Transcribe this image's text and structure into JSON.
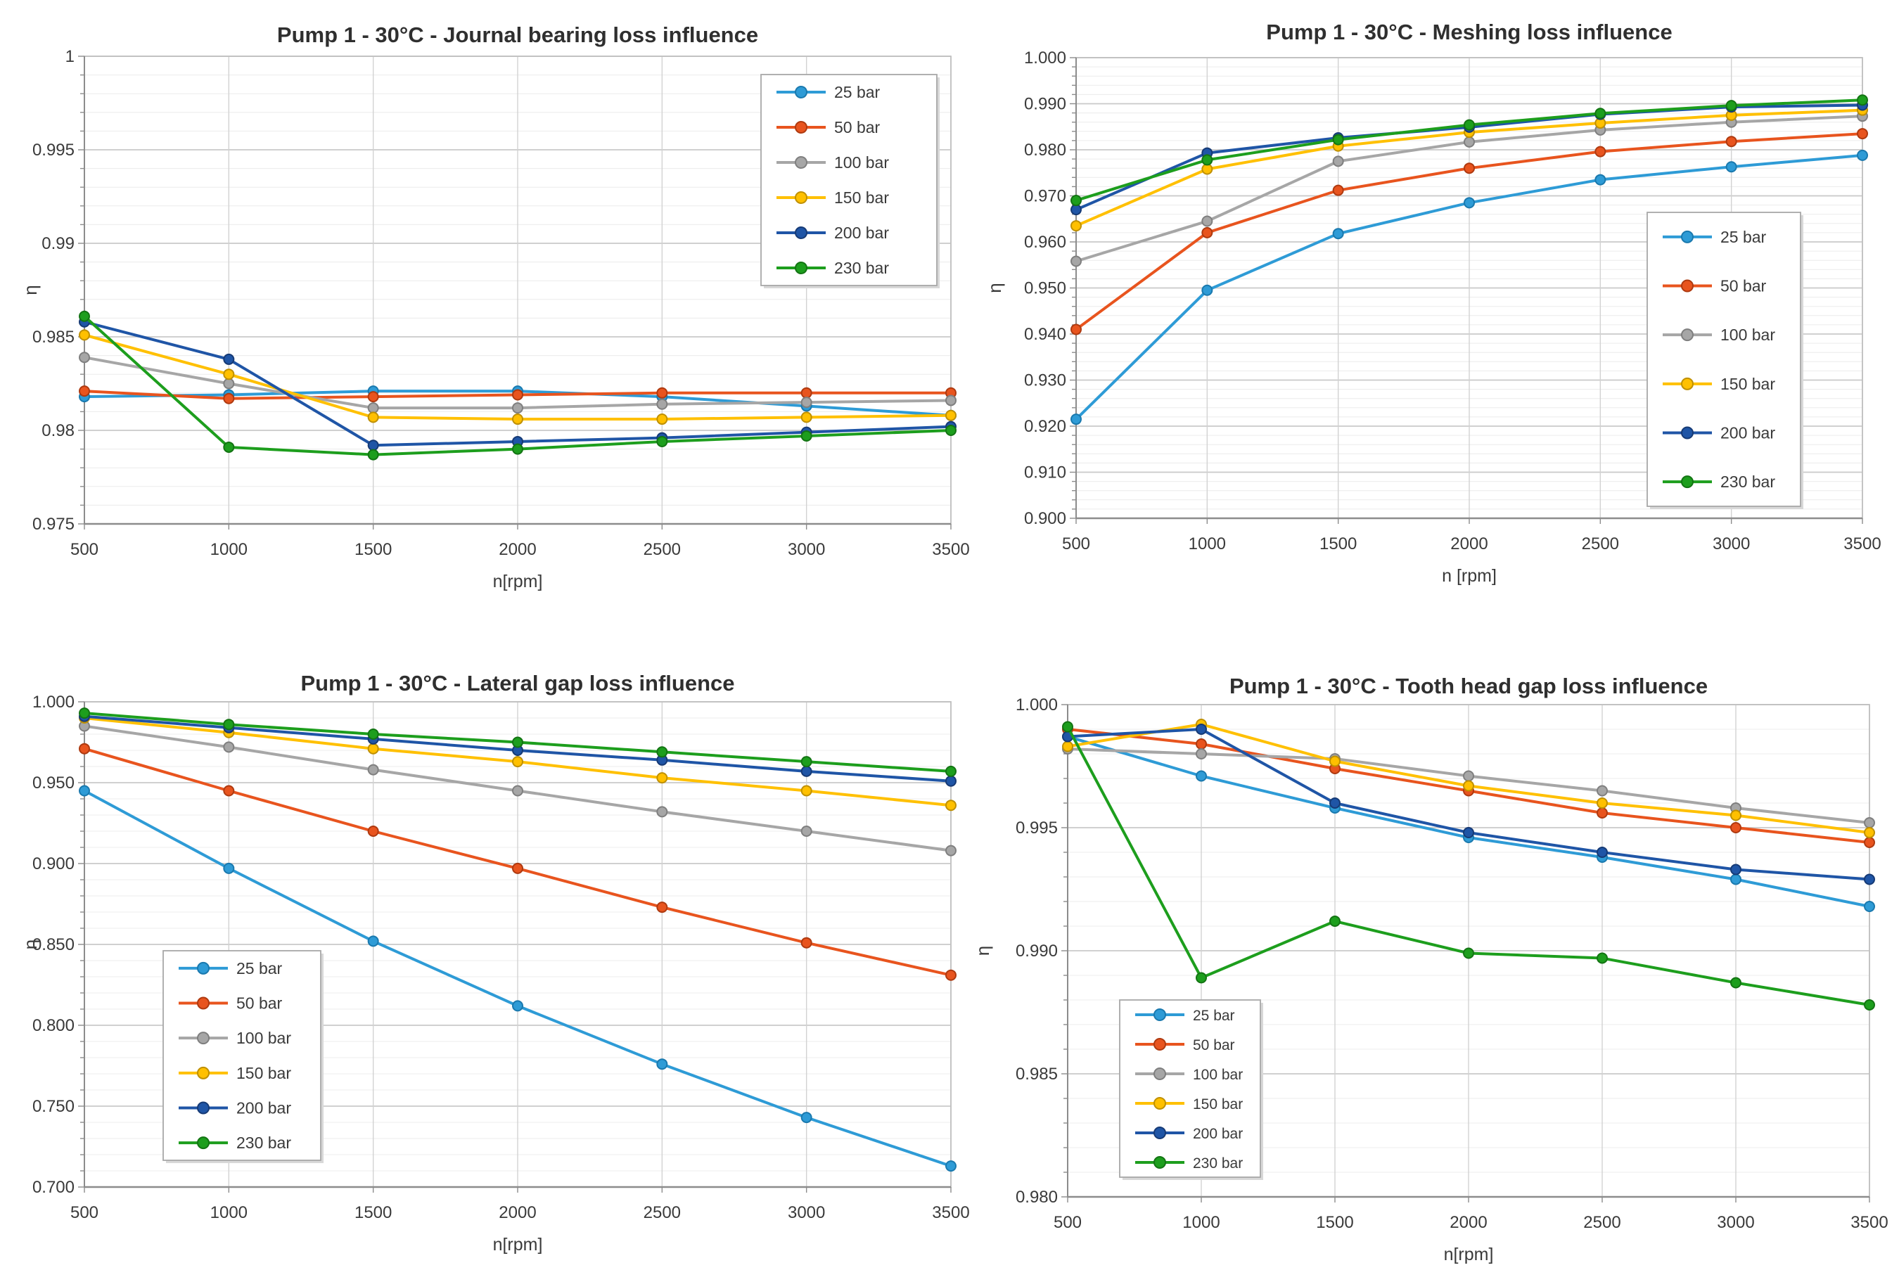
{
  "figure": {
    "background": "#ffffff",
    "text_color": "#3a3a3a",
    "grid_major_color": "#c9c9c9",
    "grid_minor_color": "#ececec",
    "grid_vert_color": "#d2d2d2",
    "axis_color": "#8c8c8c",
    "border_color": "#c0c0c0",
    "legend_border_color": "#a8a8a8",
    "legend_bg": "#ffffff"
  },
  "chart_data": [
    {
      "type": "line",
      "title": "Pump 1 - 30°C - Journal bearing loss influence",
      "xlabel": "n[rpm]",
      "ylabel": "η",
      "x": [
        500,
        1000,
        1500,
        2000,
        2500,
        3000,
        3500
      ],
      "xtick_labels": [
        "500",
        "1000",
        "1500",
        "2000",
        "2500",
        "3000",
        "3500"
      ],
      "ylim": [
        0.975,
        1.0
      ],
      "ymajor_step": 0.005,
      "yminor_step": 0.001,
      "ytick_values": [
        1.0,
        0.995,
        0.99,
        0.985,
        0.98,
        0.975
      ],
      "ytick_labels": [
        "1",
        "0.995",
        "0.99",
        "0.985",
        "0.98",
        "0.975"
      ],
      "grid": true,
      "legend_position": "top-right-inset",
      "series": [
        {
          "name": "25 bar",
          "color": "#2E9BD6",
          "edge": "#1A79AE",
          "values": [
            0.9818,
            0.9819,
            0.9821,
            0.9821,
            0.9818,
            0.9813,
            0.9808
          ]
        },
        {
          "name": "50 bar",
          "color": "#E8541E",
          "edge": "#AE3A10",
          "values": [
            0.9821,
            0.9817,
            0.9818,
            0.9819,
            0.982,
            0.982,
            0.982
          ]
        },
        {
          "name": "100 bar",
          "color": "#A6A6A6",
          "edge": "#7F7F7F",
          "values": [
            0.9839,
            0.9825,
            0.9812,
            0.9812,
            0.9814,
            0.9815,
            0.9816
          ]
        },
        {
          "name": "150 bar",
          "color": "#FFC000",
          "edge": "#BF9000",
          "values": [
            0.9851,
            0.983,
            0.9807,
            0.9806,
            0.9806,
            0.9807,
            0.9808
          ]
        },
        {
          "name": "200 bar",
          "color": "#1F55A6",
          "edge": "#163A75",
          "values": [
            0.9858,
            0.9838,
            0.9792,
            0.9794,
            0.9796,
            0.9799,
            0.9802
          ]
        },
        {
          "name": "230 bar",
          "color": "#1D9E1D",
          "edge": "#137413",
          "values": [
            0.9861,
            0.9791,
            0.9787,
            0.979,
            0.9794,
            0.9797,
            0.98
          ]
        }
      ]
    },
    {
      "type": "line",
      "title": "Pump 1 - 30°C - Meshing loss influence",
      "xlabel": "n [rpm]",
      "ylabel": "η",
      "x": [
        500,
        1000,
        1500,
        2000,
        2500,
        3000,
        3500
      ],
      "xtick_labels": [
        "500",
        "1000",
        "1500",
        "2000",
        "2500",
        "3000",
        "3500"
      ],
      "ylim": [
        0.9,
        1.0
      ],
      "ymajor_step": 0.01,
      "yminor_step": 0.002,
      "ytick_values": [
        1.0,
        0.99,
        0.98,
        0.97,
        0.96,
        0.95,
        0.94,
        0.93,
        0.92,
        0.91,
        0.9
      ],
      "ytick_labels": [
        "1.000",
        "0.990",
        "0.980",
        "0.970",
        "0.960",
        "0.950",
        "0.940",
        "0.930",
        "0.920",
        "0.910",
        "0.900"
      ],
      "grid": true,
      "legend_position": "right-inset",
      "series": [
        {
          "name": "25 bar",
          "color": "#2E9BD6",
          "edge": "#1A79AE",
          "values": [
            0.9215,
            0.9495,
            0.9618,
            0.9685,
            0.9735,
            0.9763,
            0.9788
          ]
        },
        {
          "name": "50 bar",
          "color": "#E8541E",
          "edge": "#AE3A10",
          "values": [
            0.941,
            0.962,
            0.9712,
            0.976,
            0.9796,
            0.9818,
            0.9835
          ]
        },
        {
          "name": "100 bar",
          "color": "#A6A6A6",
          "edge": "#7F7F7F",
          "values": [
            0.9558,
            0.9645,
            0.9775,
            0.9817,
            0.9843,
            0.986,
            0.9873
          ]
        },
        {
          "name": "150 bar",
          "color": "#FFC000",
          "edge": "#BF9000",
          "values": [
            0.9635,
            0.9758,
            0.9808,
            0.9838,
            0.9858,
            0.9875,
            0.9886
          ]
        },
        {
          "name": "200 bar",
          "color": "#1F55A6",
          "edge": "#163A75",
          "values": [
            0.967,
            0.9793,
            0.9826,
            0.9849,
            0.9877,
            0.9893,
            0.9897
          ]
        },
        {
          "name": "230 bar",
          "color": "#1D9E1D",
          "edge": "#137413",
          "values": [
            0.969,
            0.9778,
            0.9822,
            0.9854,
            0.9879,
            0.9896,
            0.9908
          ]
        }
      ]
    },
    {
      "type": "line",
      "title": "Pump 1 - 30°C - Lateral gap loss influence",
      "xlabel": "n[rpm]",
      "ylabel": "η",
      "x": [
        500,
        1000,
        1500,
        2000,
        2500,
        3000,
        3500
      ],
      "xtick_labels": [
        "500",
        "1000",
        "1500",
        "2000",
        "2500",
        "3000",
        "3500"
      ],
      "ylim": [
        0.7,
        1.0
      ],
      "ymajor_step": 0.05,
      "yminor_step": 0.01,
      "ytick_values": [
        1.0,
        0.95,
        0.9,
        0.85,
        0.8,
        0.75,
        0.7
      ],
      "ytick_labels": [
        "1.000",
        "0.950",
        "0.900",
        "0.850",
        "0.800",
        "0.750",
        "0.700"
      ],
      "grid": true,
      "legend_position": "bottom-left-inset",
      "series": [
        {
          "name": "25 bar",
          "color": "#2E9BD6",
          "edge": "#1A79AE",
          "values": [
            0.945,
            0.897,
            0.852,
            0.812,
            0.776,
            0.743,
            0.713
          ]
        },
        {
          "name": "50 bar",
          "color": "#E8541E",
          "edge": "#AE3A10",
          "values": [
            0.971,
            0.945,
            0.92,
            0.897,
            0.873,
            0.851,
            0.831
          ]
        },
        {
          "name": "100 bar",
          "color": "#A6A6A6",
          "edge": "#7F7F7F",
          "values": [
            0.985,
            0.972,
            0.958,
            0.945,
            0.932,
            0.92,
            0.908
          ]
        },
        {
          "name": "150 bar",
          "color": "#FFC000",
          "edge": "#BF9000",
          "values": [
            0.99,
            0.981,
            0.971,
            0.963,
            0.953,
            0.945,
            0.936
          ]
        },
        {
          "name": "200 bar",
          "color": "#1F55A6",
          "edge": "#163A75",
          "values": [
            0.991,
            0.984,
            0.977,
            0.97,
            0.964,
            0.957,
            0.951
          ]
        },
        {
          "name": "230 bar",
          "color": "#1D9E1D",
          "edge": "#137413",
          "values": [
            0.993,
            0.986,
            0.98,
            0.975,
            0.969,
            0.963,
            0.957
          ]
        }
      ]
    },
    {
      "type": "line",
      "title": "Pump 1 - 30°C - Tooth head gap loss influence",
      "xlabel": "n[rpm]",
      "ylabel": "η",
      "x": [
        500,
        1000,
        1500,
        2000,
        2500,
        3000,
        3500
      ],
      "xtick_labels": [
        "500",
        "1000",
        "1500",
        "2000",
        "2500",
        "3000",
        "3500"
      ],
      "ylim": [
        0.98,
        1.0
      ],
      "ymajor_step": 0.005,
      "yminor_step": 0.001,
      "ytick_values": [
        1.0,
        0.995,
        0.99,
        0.985,
        0.98
      ],
      "ytick_labels": [
        "1.000",
        "0.995",
        "0.990",
        "0.985",
        "0.980"
      ],
      "grid": true,
      "legend_position": "bottom-left-inset",
      "series": [
        {
          "name": "25 bar",
          "color": "#2E9BD6",
          "edge": "#1A79AE",
          "values": [
            0.9987,
            0.9971,
            0.9958,
            0.9946,
            0.9938,
            0.9929,
            0.9918
          ]
        },
        {
          "name": "50 bar",
          "color": "#E8541E",
          "edge": "#AE3A10",
          "values": [
            0.999,
            0.9984,
            0.9974,
            0.9965,
            0.9956,
            0.995,
            0.9944
          ]
        },
        {
          "name": "100 bar",
          "color": "#A6A6A6",
          "edge": "#7F7F7F",
          "values": [
            0.9982,
            0.998,
            0.9978,
            0.9971,
            0.9965,
            0.9958,
            0.9952
          ]
        },
        {
          "name": "150 bar",
          "color": "#FFC000",
          "edge": "#BF9000",
          "values": [
            0.9983,
            0.9992,
            0.9977,
            0.9967,
            0.996,
            0.9955,
            0.9948
          ]
        },
        {
          "name": "200 bar",
          "color": "#1F55A6",
          "edge": "#163A75",
          "values": [
            0.9987,
            0.999,
            0.996,
            0.9948,
            0.994,
            0.9933,
            0.9929
          ]
        },
        {
          "name": "230 bar",
          "color": "#1D9E1D",
          "edge": "#137413",
          "values": [
            0.9991,
            0.9889,
            0.9912,
            0.9899,
            0.9897,
            0.9887,
            0.9878
          ]
        }
      ]
    }
  ]
}
